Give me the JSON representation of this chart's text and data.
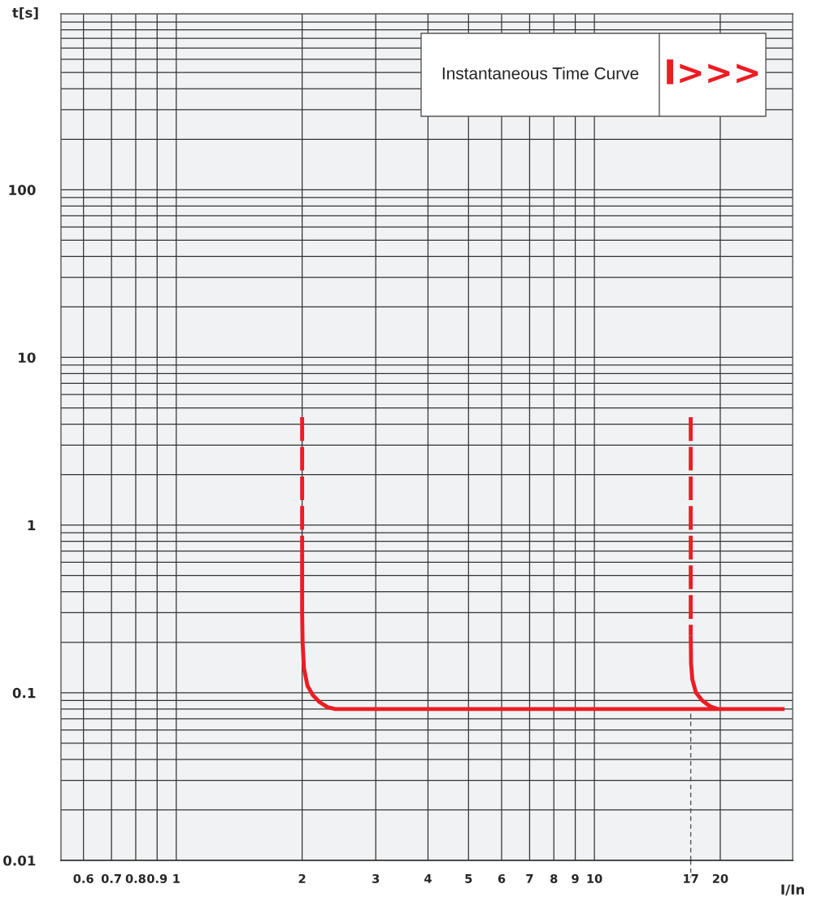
{
  "chart_data": {
    "type": "line",
    "title": "Instantaneous Time Curve",
    "annotations": [
      "I>>>"
    ],
    "xlabel": "I/In",
    "ylabel": "t[s]",
    "log": "xy",
    "grid": true,
    "xlim": [
      0.53,
      29.8
    ],
    "ylim": [
      0.01,
      1120
    ],
    "xticks": [
      0.6,
      0.7,
      0.8,
      0.9,
      1,
      2,
      3,
      4,
      5,
      6,
      7,
      8,
      9,
      10,
      17,
      20
    ],
    "yticks": [
      0.01,
      {
        "value": 0.02,
        "label": null
      },
      {
        "value": 0.03,
        "label": null
      },
      {
        "value": 0.04,
        "label": null
      },
      {
        "value": 0.05,
        "label": null
      },
      {
        "value": 0.06,
        "label": null
      },
      {
        "value": 0.07,
        "label": null
      },
      {
        "value": 0.08,
        "label": null
      },
      {
        "value": 0.09,
        "label": null
      },
      0.1,
      {
        "value": 0.2,
        "label": null
      },
      {
        "value": 0.3,
        "label": null
      },
      {
        "value": 0.4,
        "label": null
      },
      {
        "value": 0.5,
        "label": null
      },
      {
        "value": 0.6,
        "label": null
      },
      {
        "value": 0.7,
        "label": null
      },
      {
        "value": 0.8,
        "label": null
      },
      {
        "value": 0.9,
        "label": null
      },
      1,
      {
        "value": 2,
        "label": null
      },
      {
        "value": 3,
        "label": null
      },
      {
        "value": 4,
        "label": null
      },
      {
        "value": 5,
        "label": null
      },
      {
        "value": 6,
        "label": null
      },
      {
        "value": 7,
        "label": null
      },
      {
        "value": 8,
        "label": null
      },
      {
        "value": 9,
        "label": null
      },
      10,
      {
        "value": 20,
        "label": null
      },
      {
        "value": 30,
        "label": null
      },
      {
        "value": 40,
        "label": null
      },
      {
        "value": 50,
        "label": null
      },
      {
        "value": 60,
        "label": null
      },
      {
        "value": 70,
        "label": null
      },
      {
        "value": 80,
        "label": null
      },
      {
        "value": 90,
        "label": null
      },
      100,
      {
        "value": 200,
        "label": null
      },
      {
        "value": 300,
        "label": null
      },
      {
        "value": 400,
        "label": null
      },
      {
        "value": 500,
        "label": null
      },
      {
        "value": 600,
        "label": null
      },
      {
        "value": 700,
        "label": null
      },
      {
        "value": 800,
        "label": null
      },
      {
        "value": 900,
        "label": null
      },
      {
        "value": 1000,
        "label": null
      }
    ],
    "ref_lines": [
      {
        "axis": "x",
        "value": 17,
        "line_style": "dashed",
        "color": "#555555"
      }
    ],
    "series": [
      {
        "color": "#ed1c24",
        "line_style": "dashed",
        "x": [
          2,
          2
        ],
        "values": [
          4.4,
          0.68
        ]
      },
      {
        "color": "#ed1c24",
        "line_style": "solid",
        "x": [
          2,
          2,
          2.005,
          2.02,
          2.06,
          2.12,
          2.2,
          2.3,
          2.4,
          28.5
        ],
        "values": [
          0.68,
          0.3,
          0.2,
          0.14,
          0.11,
          0.097,
          0.088,
          0.082,
          0.08,
          0.08
        ]
      },
      {
        "color": "#ed1c24",
        "line_style": "dashed",
        "x": [
          17,
          17
        ],
        "values": [
          4.4,
          0.22
        ]
      },
      {
        "color": "#ed1c24",
        "line_style": "solid",
        "x": [
          17,
          17.03,
          17.15,
          17.5,
          18.1,
          18.9,
          19.7
        ],
        "values": [
          0.22,
          0.15,
          0.12,
          0.1,
          0.09,
          0.083,
          0.08
        ]
      }
    ]
  }
}
